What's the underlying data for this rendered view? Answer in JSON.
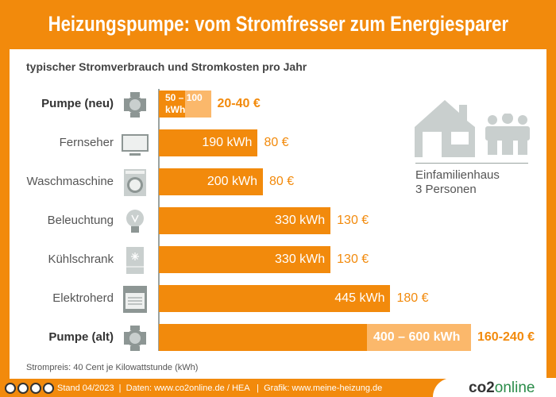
{
  "title": "Heizungspumpe: vom Stromfresser zum Energiesparer",
  "chart_data": {
    "type": "bar",
    "orientation": "horizontal",
    "subtitle": "typischer Stromverbrauch und Stromkosten pro Jahr",
    "unit": "kWh",
    "colors": {
      "bar": "#f28a0c",
      "range": "#fbb86b",
      "icon": "#a9b2b0"
    },
    "rows": [
      {
        "label": "Pumpe (neu)",
        "bold": true,
        "icon": "pump-icon",
        "min": 50,
        "max": 100,
        "value_label": "50 – 100 kWh",
        "cost": "20-40 €"
      },
      {
        "label": "Fernseher",
        "bold": false,
        "icon": "tv-icon",
        "min": 190,
        "max": 190,
        "value_label": "190 kWh",
        "cost": "80 €"
      },
      {
        "label": "Waschmaschine",
        "bold": false,
        "icon": "washing-machine-icon",
        "min": 200,
        "max": 200,
        "value_label": "200 kWh",
        "cost": "80 €"
      },
      {
        "label": "Beleuchtung",
        "bold": false,
        "icon": "lightbulb-icon",
        "min": 330,
        "max": 330,
        "value_label": "330 kWh",
        "cost": "130 €"
      },
      {
        "label": "Kühlschrank",
        "bold": false,
        "icon": "fridge-icon",
        "min": 330,
        "max": 330,
        "value_label": "330 kWh",
        "cost": "130 €"
      },
      {
        "label": "Elektroherd",
        "bold": false,
        "icon": "stove-icon",
        "min": 445,
        "max": 445,
        "value_label": "445 kWh",
        "cost": "180 €"
      },
      {
        "label": "Pumpe (alt)",
        "bold": true,
        "icon": "pump-icon",
        "min": 400,
        "max": 600,
        "value_label": "400 – 600 kWh",
        "cost": "160-240 €"
      }
    ],
    "household": {
      "line1": "Einfamilienhaus",
      "line2": "3 Personen"
    },
    "note": "Strompreis: 40 Cent je Kilowattstunde (kWh)"
  },
  "footer": {
    "text": "Stand 04/2023  |  Daten: www.co2online.de / HEA   |  Grafik: www.meine-heizung.de",
    "logo_a": "co2",
    "logo_b": "online"
  }
}
